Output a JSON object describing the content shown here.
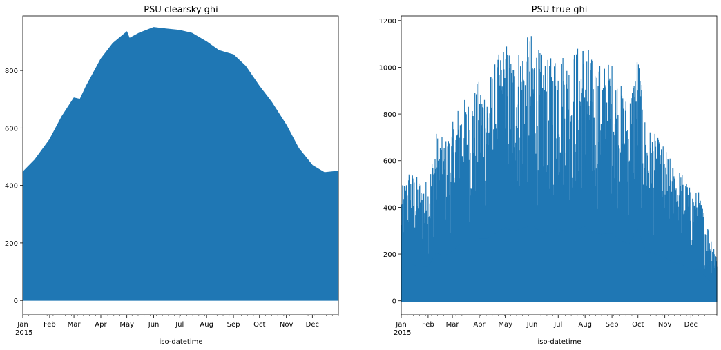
{
  "chart_data": [
    {
      "type": "area",
      "title": "PSU clearsky ghi",
      "xlabel": "iso-datetime",
      "ylabel": "",
      "xlim": [
        "2015-01-01",
        "2015-12-31"
      ],
      "ylim": [
        -50,
        990
      ],
      "yticks": [
        0,
        200,
        400,
        600,
        800
      ],
      "xticks": [
        "Jan",
        "Feb",
        "Mar",
        "Apr",
        "May",
        "Jun",
        "Jul",
        "Aug",
        "Sep",
        "Oct",
        "Nov",
        "Dec"
      ],
      "xtick_dates": [
        "2015-01-01",
        "2015-02-01",
        "2015-03-01",
        "2015-04-01",
        "2015-05-01",
        "2015-06-01",
        "2015-07-01",
        "2015-08-01",
        "2015-09-01",
        "2015-10-01",
        "2015-11-01",
        "2015-12-01"
      ],
      "year_label": "2015",
      "color": "#1f77b4",
      "grid": false,
      "series": [
        {
          "x": [
            "2015-01-01",
            "2015-01-15",
            "2015-02-01",
            "2015-02-15",
            "2015-03-01",
            "2015-03-08",
            "2015-03-15",
            "2015-04-01",
            "2015-04-15",
            "2015-05-01",
            "2015-05-04",
            "2015-05-15",
            "2015-06-01",
            "2015-06-15",
            "2015-07-01",
            "2015-07-15",
            "2015-08-01",
            "2015-08-15",
            "2015-09-01",
            "2015-09-15",
            "2015-10-01",
            "2015-10-15",
            "2015-11-01",
            "2015-11-15",
            "2015-12-01",
            "2015-12-15",
            "2015-12-31"
          ],
          "y_max": [
            447,
            490,
            560,
            640,
            705,
            700,
            745,
            840,
            895,
            935,
            912,
            930,
            950,
            945,
            940,
            930,
            900,
            870,
            855,
            815,
            745,
            690,
            610,
            530,
            470,
            445,
            450
          ],
          "y_min": 0
        }
      ]
    },
    {
      "type": "line",
      "title": "PSU true ghi",
      "xlabel": "iso-datetime",
      "ylabel": "",
      "xlim": [
        "2015-01-01",
        "2015-12-31"
      ],
      "ylim": [
        -60,
        1220
      ],
      "yticks": [
        0,
        200,
        400,
        600,
        800,
        1000,
        1200
      ],
      "xticks": [
        "Jan",
        "Feb",
        "Mar",
        "Apr",
        "May",
        "Jun",
        "Jul",
        "Aug",
        "Sep",
        "Oct",
        "Nov",
        "Dec"
      ],
      "xtick_dates": [
        "2015-01-01",
        "2015-02-01",
        "2015-03-01",
        "2015-04-01",
        "2015-05-01",
        "2015-06-01",
        "2015-07-01",
        "2015-08-01",
        "2015-09-01",
        "2015-10-01",
        "2015-11-01",
        "2015-12-01"
      ],
      "year_label": "2015",
      "color": "#1f77b4",
      "grid": false,
      "series": [
        {
          "x": [
            "2015-01-01",
            "2015-01-10",
            "2015-01-20",
            "2015-02-01",
            "2015-02-10",
            "2015-02-20",
            "2015-03-01",
            "2015-03-10",
            "2015-03-20",
            "2015-04-01",
            "2015-04-10",
            "2015-04-20",
            "2015-05-01",
            "2015-05-10",
            "2015-05-20",
            "2015-06-01",
            "2015-06-10",
            "2015-06-20",
            "2015-07-01",
            "2015-07-10",
            "2015-07-20",
            "2015-08-01",
            "2015-08-10",
            "2015-08-20",
            "2015-09-01",
            "2015-09-10",
            "2015-09-20",
            "2015-10-01",
            "2015-10-10",
            "2015-10-20",
            "2015-11-01",
            "2015-11-10",
            "2015-11-20",
            "2015-12-01",
            "2015-12-10",
            "2015-12-20",
            "2015-12-31"
          ],
          "y_max": [
            480,
            570,
            530,
            520,
            730,
            690,
            760,
            870,
            870,
            950,
            950,
            1030,
            1120,
            1060,
            1110,
            1150,
            1070,
            1030,
            1100,
            1060,
            1080,
            1135,
            1030,
            1020,
            1030,
            940,
            860,
            1090,
            760,
            720,
            660,
            590,
            560,
            480,
            470,
            340,
            215
          ],
          "y_min": -5
        }
      ]
    }
  ]
}
